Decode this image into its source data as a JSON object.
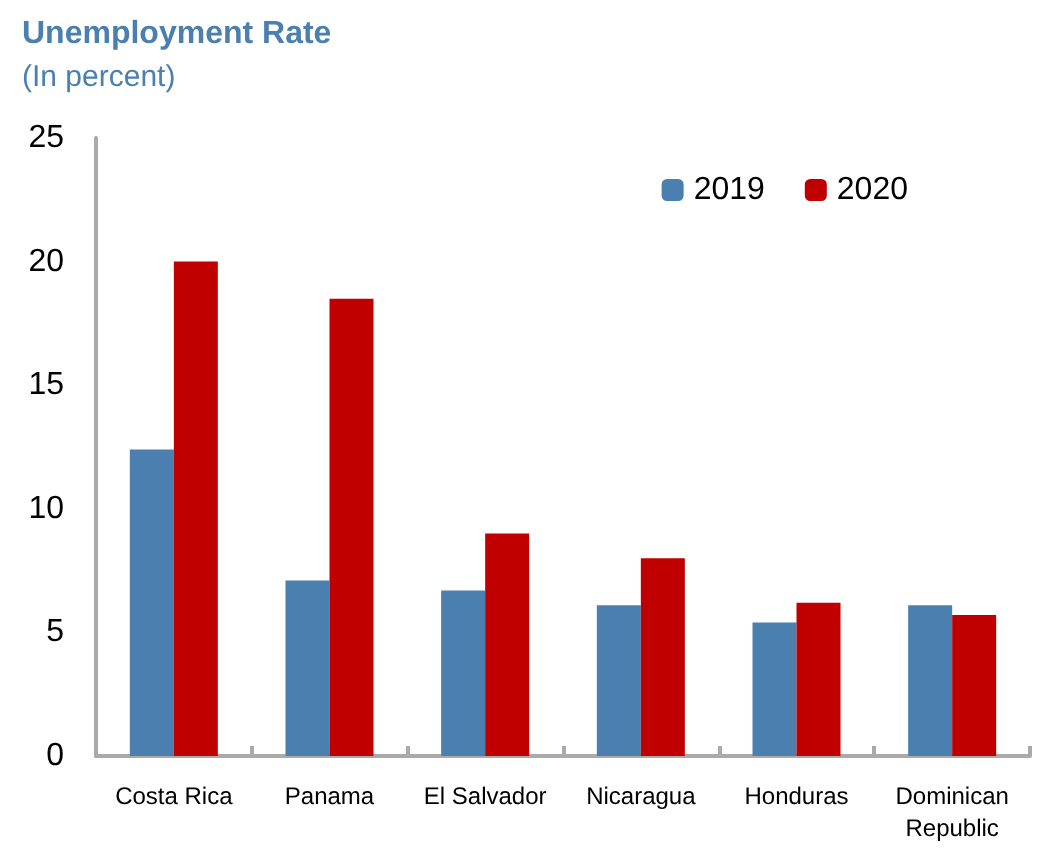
{
  "chart_data": {
    "type": "bar",
    "title": "Unemployment Rate",
    "subtitle": "(In percent)",
    "categories": [
      "Costa Rica",
      "Panama",
      "El Salvador",
      "Nicaragua",
      "Honduras",
      "Dominican\nRepublic"
    ],
    "series": [
      {
        "name": "2019",
        "color": "#4a7fb0",
        "values": [
          12.4,
          7.1,
          6.7,
          6.1,
          5.4,
          6.1
        ]
      },
      {
        "name": "2020",
        "color": "#c00000",
        "values": [
          20.0,
          18.5,
          9.0,
          8.0,
          6.2,
          5.7
        ]
      }
    ],
    "ylim": [
      0,
      25
    ],
    "yticks": [
      0,
      5,
      10,
      15,
      20,
      25
    ],
    "grid": false,
    "legend": "top right"
  }
}
